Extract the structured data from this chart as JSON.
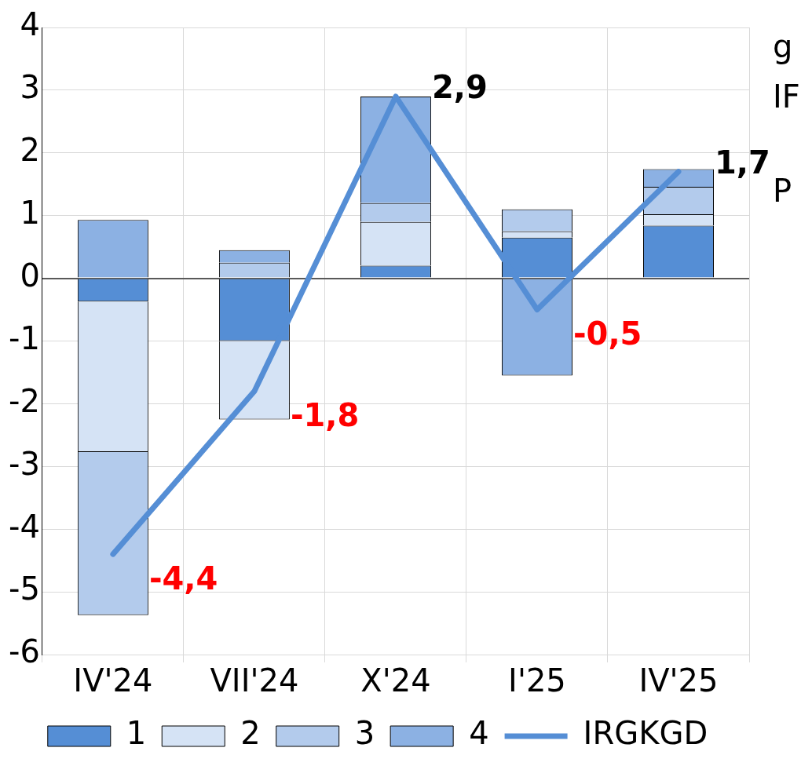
{
  "chart_data": {
    "type": "bar",
    "stacked": true,
    "categories": [
      "IV'24",
      "VII'24",
      "X'24",
      "I'25",
      "IV'25"
    ],
    "series": [
      {
        "name": "1",
        "color": "#558ed5",
        "values": [
          -0.37,
          -1.0,
          0.2,
          0.65,
          0.84
        ]
      },
      {
        "name": "2",
        "color": "#d5e3f5",
        "values": [
          -2.4,
          -1.25,
          0.7,
          0.1,
          0.18
        ]
      },
      {
        "name": "3",
        "color": "#b3cbec",
        "values": [
          -2.6,
          0.25,
          0.3,
          0.35,
          0.44
        ]
      },
      {
        "name": "4",
        "color": "#8cb1e3",
        "values": [
          0.93,
          0.2,
          1.7,
          -1.55,
          0.28
        ]
      },
      {
        "name": "IRGKGD",
        "type": "line",
        "color": "#558ed5",
        "values": [
          -4.4,
          -1.8,
          2.9,
          -0.5,
          1.7
        ],
        "value_labels": [
          "-4,4",
          "-1,8",
          "2,9",
          "-0,5",
          "1,7"
        ]
      }
    ],
    "ylim": [
      -6,
      4
    ],
    "yticks": [
      -6,
      -5,
      -4,
      -3,
      -2,
      -1,
      0,
      1,
      2,
      3,
      4
    ],
    "grid": true,
    "legend": "bottom",
    "annotations": [
      "g",
      "IF",
      "P"
    ]
  }
}
